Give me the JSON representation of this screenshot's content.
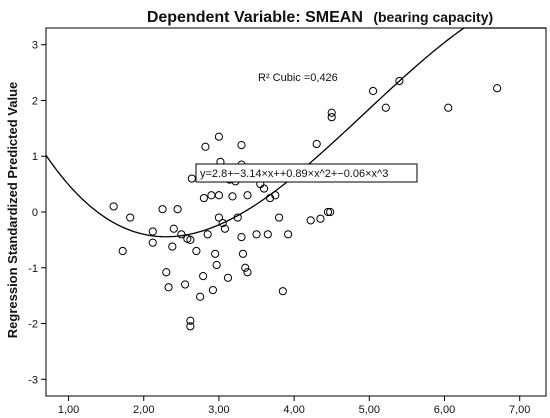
{
  "chart_data": {
    "type": "scatter",
    "title": "Dependent Variable: SMEAN",
    "subtitle": "(bearing capacity)",
    "xlabel": "",
    "ylabel": "Regression Standardized Predicted Value",
    "xlim": [
      0.7,
      7.35
    ],
    "ylim": [
      -3.3,
      3.3
    ],
    "x_ticks": [
      1,
      2,
      3,
      4,
      5,
      6,
      7
    ],
    "x_tick_labels": [
      "1,00",
      "2,00",
      "3,00",
      "4,00",
      "5,00",
      "6,00",
      "7,00"
    ],
    "y_ticks": [
      -3,
      -2,
      -1,
      0,
      1,
      2,
      3
    ],
    "y_tick_labels": [
      "-3",
      "-2",
      "-1",
      "0",
      "1",
      "2",
      "3"
    ],
    "grid": false,
    "annotations": [
      {
        "text": "R² Cubic =0,426"
      }
    ],
    "fit": {
      "type": "cubic",
      "coefficients": [
        2.8,
        -3.14,
        0.89,
        -0.06
      ],
      "label": "y=2.8+−3.14×x++0.89×x^2+−0.06×x^3"
    },
    "points": [
      {
        "x": 1.6,
        "y": 0.1
      },
      {
        "x": 1.72,
        "y": -0.7
      },
      {
        "x": 1.82,
        "y": -0.1
      },
      {
        "x": 2.12,
        "y": -0.35
      },
      {
        "x": 2.12,
        "y": -0.55
      },
      {
        "x": 2.25,
        "y": 0.05
      },
      {
        "x": 2.3,
        "y": -1.08
      },
      {
        "x": 2.33,
        "y": -1.35
      },
      {
        "x": 2.38,
        "y": -0.62
      },
      {
        "x": 2.4,
        "y": -0.3
      },
      {
        "x": 2.45,
        "y": 0.05
      },
      {
        "x": 2.5,
        "y": -0.4
      },
      {
        "x": 2.55,
        "y": -1.3
      },
      {
        "x": 2.58,
        "y": -0.48
      },
      {
        "x": 2.62,
        "y": -0.5
      },
      {
        "x": 2.62,
        "y": -1.95
      },
      {
        "x": 2.62,
        "y": -2.05
      },
      {
        "x": 2.64,
        "y": 0.6
      },
      {
        "x": 2.7,
        "y": -0.7
      },
      {
        "x": 2.75,
        "y": -1.52
      },
      {
        "x": 2.79,
        "y": -1.15
      },
      {
        "x": 2.8,
        "y": 0.25
      },
      {
        "x": 2.82,
        "y": 1.17
      },
      {
        "x": 2.85,
        "y": -0.4
      },
      {
        "x": 2.9,
        "y": 0.3
      },
      {
        "x": 2.92,
        "y": -1.4
      },
      {
        "x": 2.95,
        "y": -0.75
      },
      {
        "x": 2.97,
        "y": -0.95
      },
      {
        "x": 3.0,
        "y": 1.35
      },
      {
        "x": 3.0,
        "y": 0.3
      },
      {
        "x": 3.0,
        "y": -0.1
      },
      {
        "x": 3.02,
        "y": 0.9
      },
      {
        "x": 3.05,
        "y": -0.2
      },
      {
        "x": 3.08,
        "y": -0.3
      },
      {
        "x": 3.12,
        "y": -1.18
      },
      {
        "x": 3.14,
        "y": 0.58
      },
      {
        "x": 3.18,
        "y": 0.28
      },
      {
        "x": 3.22,
        "y": 0.55
      },
      {
        "x": 3.25,
        "y": -0.1
      },
      {
        "x": 3.3,
        "y": 0.85
      },
      {
        "x": 3.3,
        "y": 1.2
      },
      {
        "x": 3.3,
        "y": -0.45
      },
      {
        "x": 3.32,
        "y": -0.75
      },
      {
        "x": 3.35,
        "y": -1.0
      },
      {
        "x": 3.38,
        "y": -1.08
      },
      {
        "x": 3.38,
        "y": 0.3
      },
      {
        "x": 3.42,
        "y": 0.65
      },
      {
        "x": 3.5,
        "y": -0.4
      },
      {
        "x": 3.55,
        "y": 0.5
      },
      {
        "x": 3.6,
        "y": 0.42
      },
      {
        "x": 3.65,
        "y": -0.4
      },
      {
        "x": 3.68,
        "y": 0.25
      },
      {
        "x": 3.75,
        "y": 0.3
      },
      {
        "x": 3.8,
        "y": -0.1
      },
      {
        "x": 3.85,
        "y": -1.42
      },
      {
        "x": 3.92,
        "y": -0.4
      },
      {
        "x": 4.22,
        "y": -0.15
      },
      {
        "x": 4.3,
        "y": 1.22
      },
      {
        "x": 4.35,
        "y": -0.12
      },
      {
        "x": 4.45,
        "y": 0.0
      },
      {
        "x": 4.48,
        "y": 0.0
      },
      {
        "x": 4.5,
        "y": 1.7
      },
      {
        "x": 4.5,
        "y": 1.78
      },
      {
        "x": 5.05,
        "y": 2.17
      },
      {
        "x": 5.22,
        "y": 1.87
      },
      {
        "x": 5.4,
        "y": 2.35
      },
      {
        "x": 6.05,
        "y": 1.87
      },
      {
        "x": 6.7,
        "y": 2.22
      }
    ]
  },
  "colors": {
    "background": "#ffffff",
    "frame": "#000000",
    "marker": "#000000",
    "fit_line": "#000000"
  }
}
